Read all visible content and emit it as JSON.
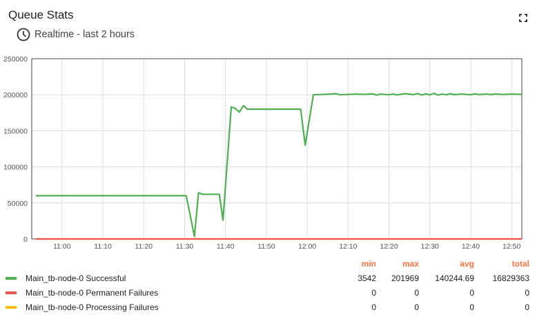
{
  "header": {
    "title": "Queue Stats",
    "subtitle": "Realtime - last 2 hours"
  },
  "legend": {
    "columns": [
      "min",
      "max",
      "avg",
      "total"
    ],
    "rows": [
      {
        "name": "Main_tb-node-0 Successful",
        "color": "#4caf50",
        "min": "3542",
        "max": "201969",
        "avg": "140244.69",
        "total": "16829363"
      },
      {
        "name": "Main_tb-node-0 Permanent Failures",
        "color": "#ef5350",
        "min": "0",
        "max": "0",
        "avg": "0",
        "total": "0"
      },
      {
        "name": "Main_tb-node-0 Processing Failures",
        "color": "#ffc107",
        "min": "0",
        "max": "0",
        "avg": "0",
        "total": "0"
      }
    ]
  },
  "chart_data": {
    "type": "line",
    "xlim": [
      "10:52:36",
      "12:52:30"
    ],
    "ylim": [
      0,
      250000
    ],
    "grid": true,
    "legend_placement": "bottom",
    "x_ticks": [
      "11:00",
      "11:10",
      "11:20",
      "11:30",
      "11:40",
      "11:50",
      "12:00",
      "12:10",
      "12:20",
      "12:30",
      "12:40",
      "12:50"
    ],
    "y_ticks": [
      "0",
      "50000",
      "100000",
      "150000",
      "200000",
      "250000"
    ],
    "series": [
      {
        "name": "Main_tb-node-0 Successful",
        "color": "#4caf50",
        "points": [
          [
            "10:53:36",
            60000
          ],
          [
            "11:30:24",
            60000
          ],
          [
            "11:32:24",
            3542
          ],
          [
            "11:33:24",
            64000
          ],
          [
            "11:34:20",
            62000
          ],
          [
            "11:38:30",
            62000
          ],
          [
            "11:39:24",
            26000
          ],
          [
            "11:41:24",
            183000
          ],
          [
            "11:42:24",
            181000
          ],
          [
            "11:43:24",
            176000
          ],
          [
            "11:44:24",
            185000
          ],
          [
            "11:45:20",
            180000
          ],
          [
            "11:58:24",
            180000
          ],
          [
            "11:59:30",
            130000
          ],
          [
            "12:00:30",
            165000
          ],
          [
            "12:01:30",
            200000
          ],
          [
            "12:04",
            200500
          ],
          [
            "12:06",
            201000
          ],
          [
            "12:07",
            201500
          ],
          [
            "12:08",
            200000
          ],
          [
            "12:10",
            200500
          ],
          [
            "12:12",
            201000
          ],
          [
            "12:14",
            200500
          ],
          [
            "12:16",
            201200
          ],
          [
            "12:17",
            199500
          ],
          [
            "12:18",
            201000
          ],
          [
            "12:20",
            200000
          ],
          [
            "12:21",
            201000
          ],
          [
            "12:22",
            199800
          ],
          [
            "12:24",
            201500
          ],
          [
            "12:26",
            200200
          ],
          [
            "12:27",
            201700
          ],
          [
            "12:28",
            199600
          ],
          [
            "12:29",
            201200
          ],
          [
            "12:30",
            199800
          ],
          [
            "12:31",
            201969
          ],
          [
            "12:32",
            199500
          ],
          [
            "12:33",
            201000
          ],
          [
            "12:34",
            200000
          ],
          [
            "12:35",
            201300
          ],
          [
            "12:36",
            200200
          ],
          [
            "12:38",
            201000
          ],
          [
            "12:40",
            200000
          ],
          [
            "12:41",
            201200
          ],
          [
            "12:42",
            200300
          ],
          [
            "12:44",
            201000
          ],
          [
            "12:45",
            200200
          ],
          [
            "12:46",
            201100
          ],
          [
            "12:48",
            200400
          ],
          [
            "12:50",
            201000
          ],
          [
            "12:52:30",
            200500
          ]
        ]
      },
      {
        "name": "Main_tb-node-0 Permanent Failures",
        "color": "#ef5350",
        "points": [
          [
            "10:53:36",
            0
          ],
          [
            "12:52:30",
            0
          ]
        ]
      },
      {
        "name": "Main_tb-node-0 Processing Failures",
        "color": "#ffc107",
        "points": [
          [
            "10:53:36",
            0
          ],
          [
            "12:52:30",
            0
          ]
        ]
      }
    ]
  }
}
